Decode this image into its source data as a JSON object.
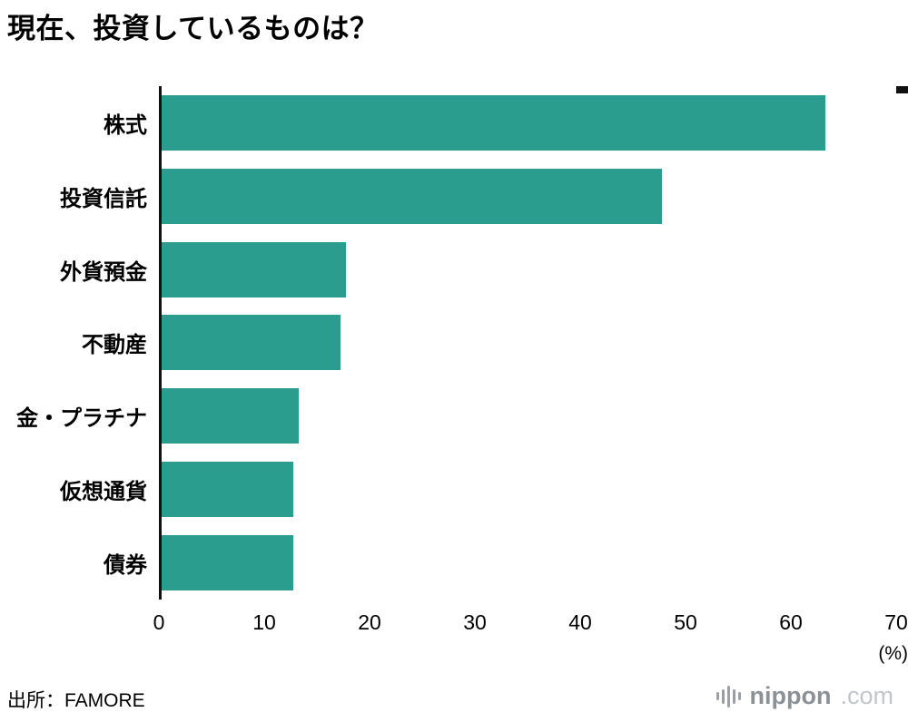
{
  "title": "現在、投資しているものは？",
  "source": "出所：FAMORE",
  "logo": {
    "icon": "soundwave-bars-icon",
    "name": "nippon",
    "tld": ".com"
  },
  "chart_data": {
    "type": "bar",
    "orientation": "horizontal",
    "title": "現在、投資しているものは？",
    "categories": [
      "株式",
      "投資信託",
      "外貨預金",
      "不動産",
      "金・プラチナ",
      "仮想通貨",
      "債券"
    ],
    "values": [
      63,
      47.5,
      17.5,
      17,
      13,
      12.5,
      12.5
    ],
    "xlabel": "(%)",
    "ylabel": "",
    "xlim": [
      0,
      70
    ],
    "xticks": [
      0,
      10,
      20,
      30,
      40,
      50,
      60,
      70
    ],
    "bar_color": "#2a9d8f",
    "grid": false,
    "legend": false
  }
}
